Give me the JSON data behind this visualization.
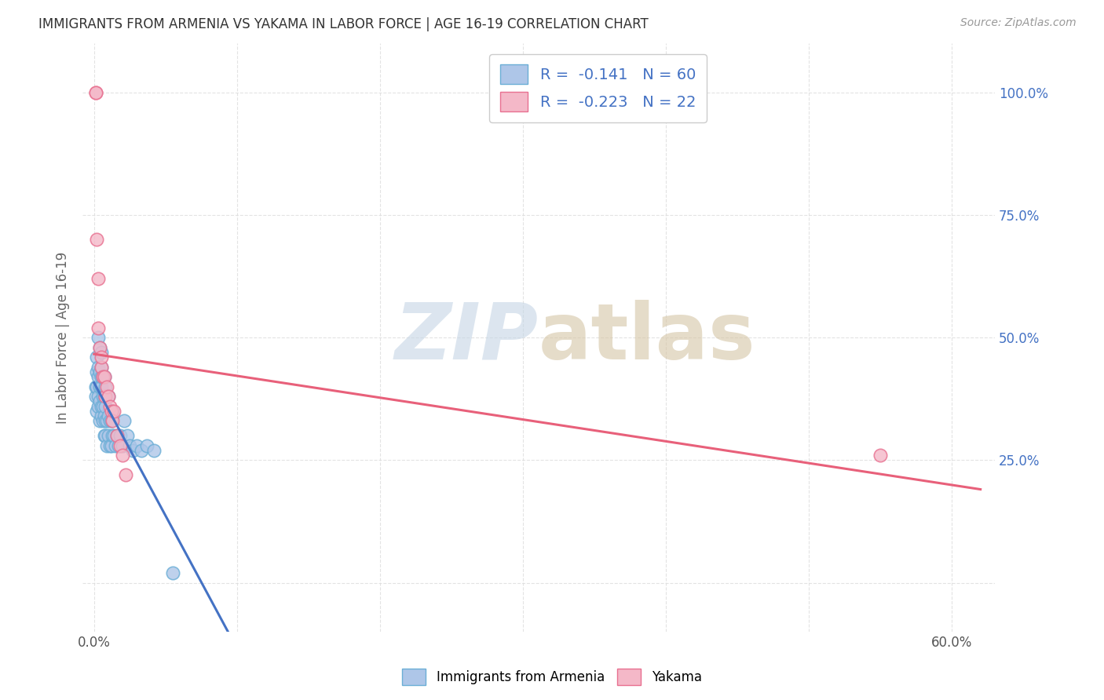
{
  "title": "IMMIGRANTS FROM ARMENIA VS YAKAMA IN LABOR FORCE | AGE 16-19 CORRELATION CHART",
  "source": "Source: ZipAtlas.com",
  "ylabel": "In Labor Force | Age 16-19",
  "xlim": [
    -0.008,
    0.63
  ],
  "ylim": [
    -0.1,
    1.1
  ],
  "armenia_color": "#aec6e8",
  "armenia_edge": "#6baed6",
  "yakama_color": "#f4b8c8",
  "yakama_edge": "#e87090",
  "blue_line_color": "#4472c4",
  "pink_line_color": "#e8607a",
  "dashed_color": "#aabbd0",
  "grid_color": "#dddddd",
  "bg_color": "#ffffff",
  "title_color": "#333333",
  "axis_label_color": "#666666",
  "right_tick_color": "#4472c4",
  "watermark_zip_color": "#c5d5e5",
  "watermark_atlas_color": "#d5c5a5",
  "armenia_x": [
    0.001,
    0.001,
    0.002,
    0.002,
    0.002,
    0.002,
    0.003,
    0.003,
    0.003,
    0.003,
    0.003,
    0.004,
    0.004,
    0.004,
    0.004,
    0.004,
    0.005,
    0.005,
    0.005,
    0.005,
    0.005,
    0.005,
    0.006,
    0.006,
    0.006,
    0.006,
    0.007,
    0.007,
    0.007,
    0.007,
    0.008,
    0.008,
    0.008,
    0.008,
    0.009,
    0.009,
    0.01,
    0.01,
    0.01,
    0.011,
    0.011,
    0.012,
    0.012,
    0.013,
    0.013,
    0.014,
    0.015,
    0.016,
    0.017,
    0.018,
    0.02,
    0.021,
    0.023,
    0.025,
    0.027,
    0.03,
    0.033,
    0.037,
    0.042,
    0.055
  ],
  "armenia_y": [
    0.38,
    0.4,
    0.35,
    0.4,
    0.43,
    0.46,
    0.36,
    0.38,
    0.42,
    0.44,
    0.5,
    0.33,
    0.37,
    0.4,
    0.43,
    0.48,
    0.34,
    0.36,
    0.4,
    0.42,
    0.44,
    0.47,
    0.33,
    0.36,
    0.38,
    0.42,
    0.3,
    0.34,
    0.38,
    0.42,
    0.3,
    0.33,
    0.36,
    0.4,
    0.28,
    0.33,
    0.3,
    0.34,
    0.38,
    0.28,
    0.33,
    0.28,
    0.33,
    0.3,
    0.35,
    0.3,
    0.28,
    0.3,
    0.28,
    0.3,
    0.28,
    0.33,
    0.3,
    0.28,
    0.27,
    0.28,
    0.27,
    0.28,
    0.27,
    0.02
  ],
  "yakama_x": [
    0.001,
    0.001,
    0.002,
    0.003,
    0.003,
    0.004,
    0.005,
    0.005,
    0.006,
    0.007,
    0.008,
    0.009,
    0.01,
    0.011,
    0.012,
    0.013,
    0.014,
    0.016,
    0.018,
    0.02,
    0.022,
    0.55
  ],
  "yakama_y": [
    1.0,
    1.0,
    0.7,
    0.62,
    0.52,
    0.48,
    0.44,
    0.46,
    0.42,
    0.42,
    0.38,
    0.4,
    0.38,
    0.36,
    0.35,
    0.33,
    0.35,
    0.3,
    0.28,
    0.26,
    0.22,
    0.26
  ],
  "armenia_line_xmax": 0.11,
  "yakama_line_xmax": 0.6
}
